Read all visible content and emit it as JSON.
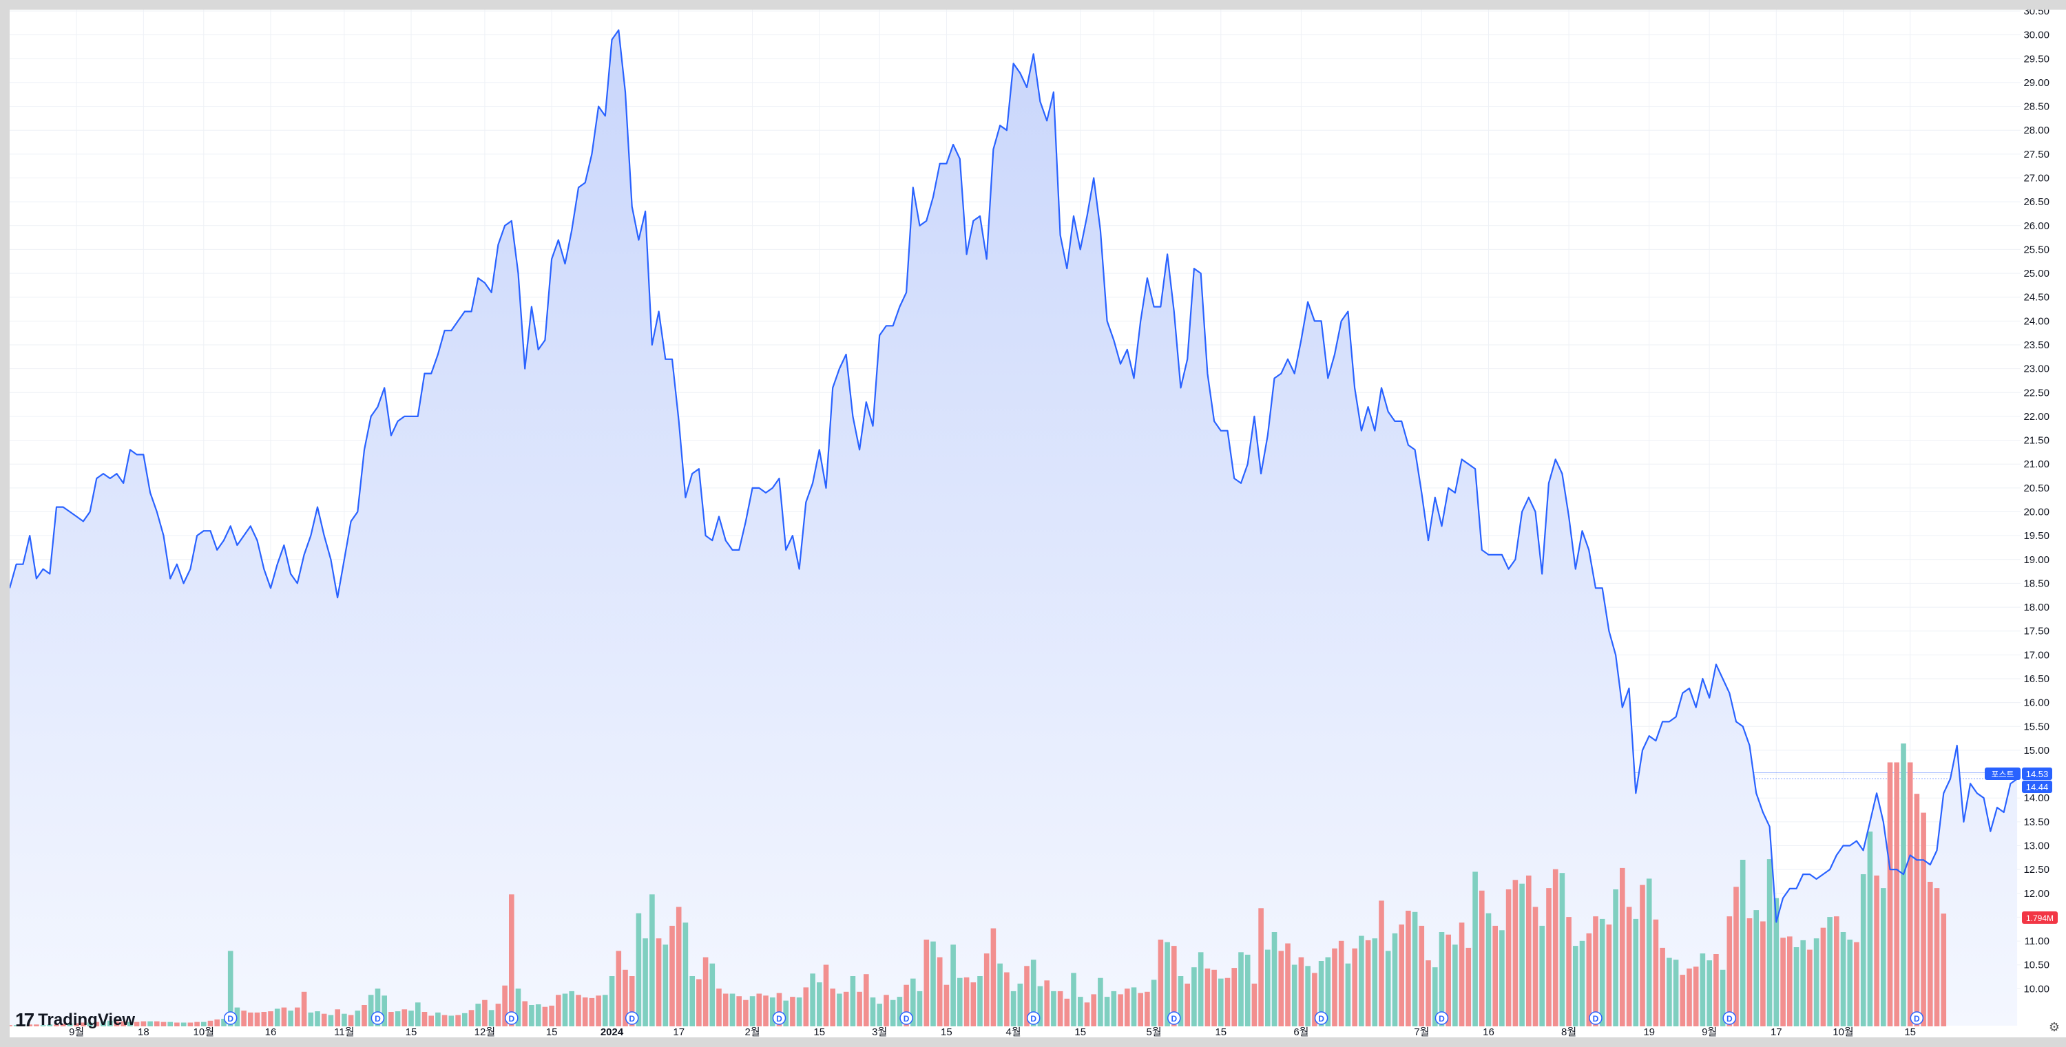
{
  "branding": {
    "logo": "TradingView"
  },
  "colors": {
    "line": "#2962ff",
    "area_top": "#c9d6fb",
    "area_bottom": "#f4f7ff",
    "volume_up": "#7fcfc0",
    "volume_down": "#f28f8f",
    "grid": "#eef1f6",
    "label_blue": "#2962ff",
    "label_red": "#f23645"
  },
  "price_labels": {
    "post": {
      "tag": "포스트",
      "value": "14.53"
    },
    "last": {
      "value": "14.44"
    },
    "volume": {
      "value": "1.794M"
    }
  },
  "chart_data": {
    "type": "area",
    "title": "",
    "ylim": [
      9.5,
      30.5
    ],
    "grid": true,
    "y_ticks": [
      "10.00",
      "10.50",
      "11.00",
      "11.50",
      "12.00",
      "12.50",
      "13.00",
      "13.50",
      "14.00",
      "14.50",
      "15.00",
      "15.50",
      "16.00",
      "16.50",
      "17.00",
      "17.50",
      "18.00",
      "18.50",
      "19.00",
      "19.50",
      "20.00",
      "20.50",
      "21.00",
      "21.50",
      "22.00",
      "22.50",
      "23.00",
      "23.50",
      "24.00",
      "24.50",
      "25.00",
      "25.50",
      "26.00",
      "26.50",
      "27.00",
      "27.50",
      "28.00",
      "28.50",
      "29.00",
      "29.50",
      "30.00",
      "30.50"
    ],
    "x_ticks": [
      {
        "label": "9월",
        "index": 10,
        "bold": false
      },
      {
        "label": "18",
        "index": 20,
        "bold": false
      },
      {
        "label": "10월",
        "index": 29,
        "bold": false
      },
      {
        "label": "16",
        "index": 39,
        "bold": false
      },
      {
        "label": "11월",
        "index": 50,
        "bold": false
      },
      {
        "label": "15",
        "index": 60,
        "bold": false
      },
      {
        "label": "12월",
        "index": 71,
        "bold": false
      },
      {
        "label": "15",
        "index": 81,
        "bold": false
      },
      {
        "label": "2024",
        "index": 90,
        "bold": true
      },
      {
        "label": "17",
        "index": 100,
        "bold": false
      },
      {
        "label": "2월",
        "index": 111,
        "bold": false
      },
      {
        "label": "15",
        "index": 121,
        "bold": false
      },
      {
        "label": "3월",
        "index": 130,
        "bold": false
      },
      {
        "label": "15",
        "index": 140,
        "bold": false
      },
      {
        "label": "4월",
        "index": 150,
        "bold": false
      },
      {
        "label": "15",
        "index": 160,
        "bold": false
      },
      {
        "label": "5월",
        "index": 171,
        "bold": false
      },
      {
        "label": "15",
        "index": 181,
        "bold": false
      },
      {
        "label": "6월",
        "index": 193,
        "bold": false
      },
      {
        "label": "7월",
        "index": 211,
        "bold": false
      },
      {
        "label": "16",
        "index": 221,
        "bold": false
      },
      {
        "label": "8월",
        "index": 233,
        "bold": false
      },
      {
        "label": "19",
        "index": 245,
        "bold": false
      },
      {
        "label": "9월",
        "index": 254,
        "bold": false
      },
      {
        "label": "17",
        "index": 264,
        "bold": false
      },
      {
        "label": "10월",
        "index": 274,
        "bold": false
      },
      {
        "label": "15",
        "index": 284,
        "bold": false
      }
    ],
    "dividend_markers": {
      "label": "D",
      "indices": [
        33,
        55,
        75,
        93,
        115,
        134,
        153,
        174,
        196,
        214,
        237,
        257,
        285
      ]
    },
    "price": [
      18.4,
      18.9,
      18.9,
      19.5,
      18.6,
      18.8,
      18.7,
      20.1,
      20.1,
      20.0,
      19.9,
      19.8,
      20.0,
      20.7,
      20.8,
      20.7,
      20.8,
      20.6,
      21.3,
      21.2,
      21.2,
      20.4,
      20.0,
      19.5,
      18.6,
      18.9,
      18.5,
      18.8,
      19.5,
      19.6,
      19.6,
      19.2,
      19.4,
      19.7,
      19.3,
      19.5,
      19.7,
      19.4,
      18.8,
      18.4,
      18.9,
      19.3,
      18.7,
      18.5,
      19.1,
      19.5,
      20.1,
      19.5,
      19.0,
      18.2,
      19.0,
      19.8,
      20.0,
      21.3,
      22.0,
      22.2,
      22.6,
      21.6,
      21.9,
      22.0,
      22.0,
      22.0,
      22.9,
      22.9,
      23.3,
      23.8,
      23.8,
      24.0,
      24.2,
      24.2,
      24.9,
      24.8,
      24.6,
      25.6,
      26.0,
      26.1,
      25.0,
      23.0,
      24.3,
      23.4,
      23.6,
      25.3,
      25.7,
      25.2,
      25.9,
      26.8,
      26.9,
      27.5,
      28.5,
      28.3,
      29.9,
      30.1,
      28.8,
      26.4,
      25.7,
      26.3,
      23.5,
      24.2,
      23.2,
      23.2,
      21.9,
      20.3,
      20.8,
      20.9,
      19.5,
      19.4,
      19.9,
      19.4,
      19.2,
      19.2,
      19.8,
      20.5,
      20.5,
      20.4,
      20.5,
      20.7,
      19.2,
      19.5,
      18.8,
      20.2,
      20.6,
      21.3,
      20.5,
      22.6,
      23.0,
      23.3,
      22.0,
      21.3,
      22.3,
      21.8,
      23.7,
      23.9,
      23.9,
      24.3,
      24.6,
      26.8,
      26.0,
      26.1,
      26.6,
      27.3,
      27.3,
      27.7,
      27.4,
      25.4,
      26.1,
      26.2,
      25.3,
      27.6,
      28.1,
      28.0,
      29.4,
      29.2,
      28.9,
      29.6,
      28.6,
      28.2,
      28.8,
      25.8,
      25.1,
      26.2,
      25.5,
      26.2,
      27.0,
      25.9,
      24.0,
      23.6,
      23.1,
      23.4,
      22.8,
      24.0,
      24.9,
      24.3,
      24.3,
      25.4,
      24.2,
      22.6,
      23.2,
      25.1,
      25.0,
      22.9,
      21.9,
      21.7,
      21.7,
      20.7,
      20.6,
      21.0,
      22.0,
      20.8,
      21.6,
      22.8,
      22.9,
      23.2,
      22.9,
      23.6,
      24.4,
      24.0,
      24.0,
      22.8,
      23.3,
      24.0,
      24.2,
      22.6,
      21.7,
      22.2,
      21.7,
      22.6,
      22.1,
      21.9,
      21.9,
      21.4,
      21.3,
      20.4,
      19.4,
      20.3,
      19.7,
      20.5,
      20.4,
      21.1,
      21.0,
      20.9,
      19.2,
      19.1,
      19.1,
      19.1,
      18.8,
      19.0,
      20.0,
      20.3,
      20.0,
      18.7,
      20.6,
      21.1,
      20.8,
      19.9,
      18.8,
      19.6,
      19.2,
      18.4,
      18.4,
      17.5,
      17.0,
      15.9,
      16.3,
      14.1,
      15.0,
      15.3,
      15.2,
      15.6,
      15.6,
      15.7,
      16.2,
      16.3,
      15.9,
      16.5,
      16.1,
      16.8,
      16.5,
      16.2,
      15.6,
      15.5,
      15.1,
      14.1,
      13.7,
      13.4,
      11.4,
      11.9,
      12.1,
      12.1,
      12.4,
      12.4,
      12.3,
      12.4,
      12.5,
      12.8,
      13.0,
      13.0,
      13.1,
      12.9,
      13.5,
      14.1,
      13.5,
      12.5,
      12.5,
      12.4,
      12.8,
      12.7,
      12.7,
      12.6,
      12.9,
      14.1,
      14.4,
      15.1,
      13.5,
      14.3,
      14.1,
      14.0,
      13.3,
      13.8,
      13.7,
      14.3,
      14.4
    ],
    "volume_up": [
      false,
      true,
      true,
      false,
      false,
      true,
      true,
      false,
      false,
      true,
      false,
      false,
      true,
      false,
      true,
      true,
      false,
      false,
      true,
      false,
      false,
      true,
      false,
      false,
      true,
      false,
      true,
      false,
      false,
      true,
      false,
      false,
      true,
      true,
      true,
      false,
      false,
      false,
      false,
      false,
      true,
      false,
      true,
      false,
      false,
      true,
      true,
      false,
      true,
      false,
      true,
      false,
      true,
      false,
      true,
      true,
      true,
      false,
      true,
      false,
      true,
      true,
      false,
      false,
      true,
      false,
      true,
      false,
      true,
      false,
      true,
      false,
      true,
      false,
      false,
      false,
      true,
      false,
      true,
      true,
      false,
      false,
      false,
      true,
      true,
      false,
      false,
      false,
      false,
      true,
      true,
      false,
      false,
      false,
      true,
      true,
      true,
      false,
      true,
      false,
      false,
      true,
      true,
      false,
      false,
      true,
      false,
      false,
      true,
      false,
      false,
      true,
      false,
      false,
      true,
      false,
      true,
      false,
      true,
      false,
      true,
      true,
      false,
      false,
      true,
      false,
      true,
      false,
      false,
      true,
      true,
      false,
      true,
      true,
      false,
      true,
      true,
      false,
      true,
      false,
      false,
      true,
      true,
      false,
      false,
      true,
      false,
      false,
      true,
      false,
      true,
      true,
      false,
      true,
      true,
      false,
      true,
      false,
      false,
      true,
      true,
      false,
      false,
      true,
      true,
      true,
      false,
      false,
      true,
      false,
      false,
      true,
      false,
      true,
      false,
      true,
      false,
      true,
      true,
      false,
      false,
      true,
      false,
      false,
      true,
      true,
      false,
      false,
      true,
      true,
      false,
      false,
      true,
      false,
      true,
      false,
      true,
      true,
      false,
      false,
      true,
      false,
      true,
      false,
      true,
      false,
      true,
      true,
      false,
      false,
      true,
      false,
      false,
      true,
      true,
      false,
      true,
      false,
      false,
      true,
      false,
      true,
      false,
      true,
      false,
      false,
      true,
      false,
      false,
      true,
      false,
      false,
      true,
      false,
      true,
      true,
      false,
      false,
      true,
      false,
      true,
      false,
      false,
      true,
      false,
      true,
      false,
      false,
      true,
      true,
      false,
      false,
      false,
      true,
      true,
      false,
      true,
      false,
      false,
      true,
      false,
      true,
      false,
      true,
      true,
      false,
      false,
      true,
      true,
      false,
      true,
      false,
      true,
      false,
      true,
      true,
      false,
      true,
      true,
      false,
      true,
      false,
      false,
      true,
      false
    ],
    "volume_millions": [
      0.02,
      0.02,
      0.03,
      0.03,
      0.03,
      0.02,
      0.03,
      0.03,
      0.04,
      0.05,
      0.05,
      0.06,
      0.06,
      0.07,
      0.08,
      0.09,
      0.08,
      0.08,
      0.07,
      0.07,
      0.08,
      0.08,
      0.08,
      0.07,
      0.07,
      0.06,
      0.06,
      0.06,
      0.07,
      0.07,
      0.09,
      0.11,
      0.12,
      1.2,
      0.3,
      0.25,
      0.22,
      0.22,
      0.23,
      0.24,
      0.28,
      0.3,
      0.25,
      0.3,
      0.55,
      0.22,
      0.24,
      0.2,
      0.18,
      0.27,
      0.2,
      0.18,
      0.25,
      0.34,
      0.5,
      0.6,
      0.49,
      0.23,
      0.24,
      0.27,
      0.25,
      0.38,
      0.23,
      0.17,
      0.22,
      0.18,
      0.17,
      0.18,
      0.21,
      0.26,
      0.36,
      0.42,
      0.26,
      0.36,
      0.65,
      2.1,
      0.6,
      0.4,
      0.34,
      0.35,
      0.31,
      0.33,
      0.5,
      0.52,
      0.56,
      0.5,
      0.46,
      0.45,
      0.49,
      0.5,
      0.8,
      1.2,
      0.9,
      0.8,
      1.8,
      1.4,
      2.1,
      1.4,
      1.3,
      1.6,
      1.9,
      1.65,
      0.8,
      0.75,
      1.1,
      1.0,
      0.6,
      0.52,
      0.52,
      0.48,
      0.42,
      0.48,
      0.52,
      0.49,
      0.46,
      0.53,
      0.41,
      0.47,
      0.46,
      0.62,
      0.84,
      0.7,
      0.98,
      0.6,
      0.52,
      0.55,
      0.8,
      0.55,
      0.83,
      0.46,
      0.36,
      0.5,
      0.42,
      0.47,
      0.66,
      0.76,
      0.56,
      1.38,
      1.35,
      1.1,
      0.66,
      1.3,
      0.77,
      0.78,
      0.7,
      0.8,
      1.16,
      1.56,
      1.0,
      0.86,
      0.56,
      0.68,
      0.96,
      1.06,
      0.64,
      0.73,
      0.56,
      0.56,
      0.44,
      0.85,
      0.47,
      0.38,
      0.51,
      0.77,
      0.47,
      0.56,
      0.51,
      0.6,
      0.62,
      0.53,
      0.55,
      0.74,
      1.38,
      1.34,
      1.28,
      0.8,
      0.68,
      0.94,
      1.18,
      0.92,
      0.9,
      0.76,
      0.77,
      0.93,
      1.18,
      1.14,
      0.68,
      1.88,
      1.22,
      1.5,
      1.2,
      1.32,
      0.98,
      1.1,
      0.96,
      0.85,
      1.04,
      1.1,
      1.24,
      1.36,
      1.0,
      1.24,
      1.44,
      1.37,
      1.4,
      2.0,
      1.2,
      1.48,
      1.62,
      1.84,
      1.82,
      1.6,
      1.05,
      0.94,
      1.5,
      1.46,
      1.3,
      1.65,
      1.25,
      2.46,
      2.16,
      1.8,
      1.6,
      1.53,
      2.18,
      2.33,
      2.27,
      2.4,
      1.9,
      1.6,
      2.2,
      2.5,
      2.44,
      1.74,
      1.28,
      1.36,
      1.48,
      1.75,
      1.71,
      1.62,
      2.18,
      2.52,
      1.9,
      1.71,
      2.25,
      2.35,
      1.7,
      1.25,
      1.09,
      1.06,
      0.82,
      0.92,
      0.95,
      1.16,
      1.05,
      1.15,
      0.9,
      1.75,
      2.22,
      2.65,
      1.72,
      1.85,
      1.67,
      2.66,
      2.04,
      1.41,
      1.43,
      1.26,
      1.37,
      1.22,
      1.4,
      1.57,
      1.74,
      1.75,
      1.5,
      1.38,
      1.34,
      2.42,
      3.1,
      2.4,
      2.2,
      4.2,
      4.2,
      4.5,
      4.2,
      3.7,
      3.4,
      2.3,
      2.2,
      1.794
    ]
  }
}
